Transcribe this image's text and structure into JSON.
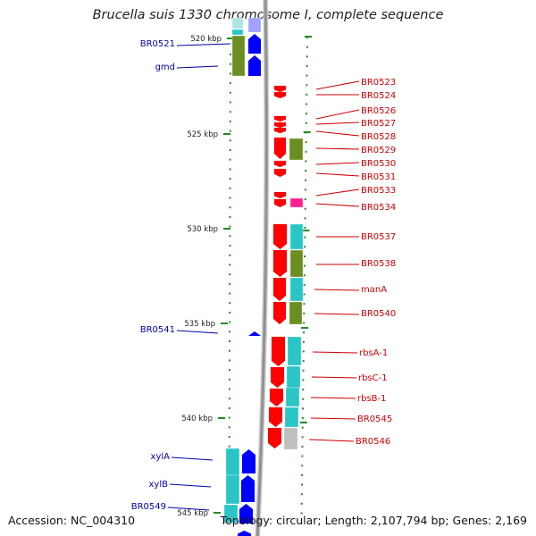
{
  "title": "Brucella suis 1330 chromosome I, complete sequence",
  "footer": {
    "accession": "Accession: NC_004310",
    "summary": "Topology: circular; Length: 2,107,794 bp; Genes: 2,169"
  },
  "colors": {
    "left_labels": "#0000aa",
    "right_labels": "#cc0000",
    "backbone": "#909090",
    "ticks": "#228b22",
    "plus_strand": "#0000ff",
    "minus_strand": "#ff0000",
    "cyan_feature": "#2ac6c6",
    "olive_feature": "#6b8e23",
    "pink_feature": "#ff2090",
    "grey_feature": "#bfbfbf"
  },
  "position_ticks": [
    "520 kbp",
    "525 kbp",
    "530 kbp",
    "535 kbp",
    "540 kbp",
    "545 kbp"
  ],
  "left_genes": [
    "BR0521",
    "gmd",
    "BR0541",
    "xylA",
    "xylB",
    "BR0549"
  ],
  "right_genes": [
    "BR0523",
    "BR0524",
    "BR0526",
    "BR0527",
    "BR0528",
    "BR0529",
    "BR0530",
    "BR0531",
    "BR0533",
    "BR0534",
    "BR0537",
    "BR0538",
    "manA",
    "BR0540",
    "rbsA-1",
    "rbsC-1",
    "rbsB-1",
    "BR0545",
    "BR0546"
  ]
}
